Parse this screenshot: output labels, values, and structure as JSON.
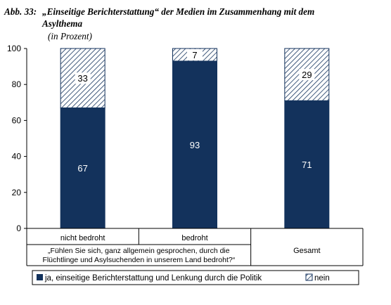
{
  "title": {
    "number": "Abb. 33:",
    "line1": "„Einseitige Berichterstattung“ der Medien im Zusammenhang mit dem",
    "line2": "Asylthema",
    "subtitle": "(in Prozent)"
  },
  "chart_data": {
    "type": "bar",
    "stacked": true,
    "categories": [
      "nicht bedroht",
      "bedroht",
      "Gesamt"
    ],
    "group_label": "„Fühlen Sie sich, ganz allgemein gesprochen, durch die Flüchtlinge und Asylsuchenden in unserem Land bedroht?“",
    "group_label_lines": [
      "„Fühlen Sie sich, ganz allgemein gesprochen, durch die",
      "Flüchtlinge und Asylsuchenden in unserem Land bedroht?“"
    ],
    "series": [
      {
        "name": "ja, einseitige Berichterstattung und Lenkung durch die Politik",
        "values": [
          67,
          93,
          71
        ],
        "color": "#13325c",
        "pattern": "solid"
      },
      {
        "name": "nein",
        "values": [
          33,
          7,
          29
        ],
        "color": "#ffffff",
        "pattern": "hatched"
      }
    ],
    "ylim": [
      0,
      100
    ],
    "yticks": [
      "0",
      "20",
      "40",
      "60",
      "80",
      "100"
    ],
    "legend_position": "bottom",
    "grid": false
  }
}
